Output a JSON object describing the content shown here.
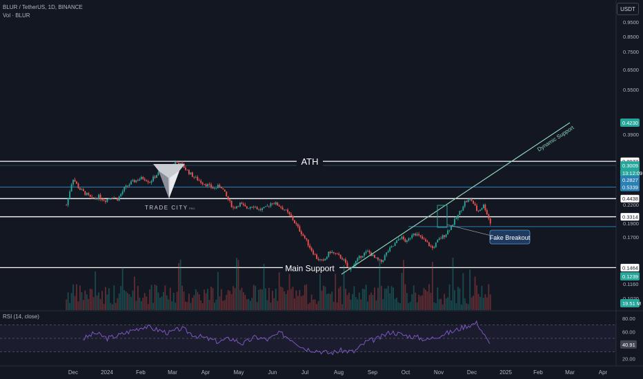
{
  "header": {
    "symbol_line": "BLUR / TetherUS, 1D, BINANCE",
    "vol_line": "Vol · BLUR",
    "currency_button": "USDT"
  },
  "rsi": {
    "label": "RSI (14, close)",
    "value_tag": "40.91",
    "tick_labels": [
      "80.00",
      "60.00",
      "20.00"
    ]
  },
  "logo": {
    "text": "TRADE CITY",
    "suffix": "PRO"
  },
  "annotations": {
    "ath": "ATH",
    "main_support": "Main Support",
    "dynamic_support": "Dynamic Support",
    "fake_breakout": "Fake Breakout"
  },
  "colors": {
    "background": "#131722",
    "up": "#26a69a",
    "down": "#ef5350",
    "level_line": "#ffffff",
    "blue_line": "#2a7fb5",
    "trend_line": "#8fd6b8",
    "rsi_line": "#7e57c2"
  },
  "chart_data": {
    "type": "candlestick",
    "x_tick_labels": [
      "Dec",
      "2024",
      "Feb",
      "Mar",
      "Apr",
      "May",
      "Jun",
      "Jul",
      "Aug",
      "Sep",
      "Oct",
      "Nov",
      "Dec",
      "2025",
      "Feb",
      "Mar",
      "Apr"
    ],
    "y_tick_labels": [
      "0.9500",
      "0.8500",
      "0.7500",
      "0.6500",
      "0.5500",
      "0.3900",
      "0.2500",
      "0.2200",
      "0.1900",
      "0.1700",
      "0.1300",
      "0.1160",
      "0.1020"
    ],
    "price_tags": [
      {
        "label": "0.8077",
        "kind": "level"
      },
      {
        "label": "0.5339",
        "kind": "blue"
      },
      {
        "label": "0.4438",
        "kind": "level"
      },
      {
        "label": "0.4230",
        "kind": "green"
      },
      {
        "label": "0.3314",
        "kind": "level"
      },
      {
        "label": "0.3009",
        "kind": "current"
      },
      {
        "label": "13:12:09",
        "kind": "current"
      },
      {
        "label": "0.2827",
        "kind": "blue"
      },
      {
        "label": "0.1464",
        "kind": "level"
      },
      {
        "label": "0.1239",
        "kind": "green"
      },
      {
        "label": "19.51 M",
        "kind": "green"
      }
    ],
    "levels": {
      "ath": 0.8077,
      "resistance_1": 0.4438,
      "resistance_2": 0.3314,
      "main_support": 0.1464,
      "blue_1": 0.5339,
      "blue_2": 0.2827
    },
    "price_path": [
      [
        0,
        0.4
      ],
      [
        2,
        0.62
      ],
      [
        4,
        0.52
      ],
      [
        6,
        0.48
      ],
      [
        8,
        0.44
      ],
      [
        10,
        0.46
      ],
      [
        12,
        0.43
      ],
      [
        14,
        0.46
      ],
      [
        16,
        0.44
      ],
      [
        18,
        0.52
      ],
      [
        20,
        0.57
      ],
      [
        22,
        0.6
      ],
      [
        24,
        0.62
      ],
      [
        26,
        0.58
      ],
      [
        28,
        0.65
      ],
      [
        30,
        0.7
      ],
      [
        32,
        0.74
      ],
      [
        34,
        0.8
      ],
      [
        36,
        0.76
      ],
      [
        38,
        0.68
      ],
      [
        40,
        0.62
      ],
      [
        42,
        0.58
      ],
      [
        44,
        0.55
      ],
      [
        46,
        0.52
      ],
      [
        48,
        0.55
      ],
      [
        50,
        0.45
      ],
      [
        52,
        0.38
      ],
      [
        54,
        0.41
      ],
      [
        56,
        0.38
      ],
      [
        58,
        0.4
      ],
      [
        60,
        0.37
      ],
      [
        62,
        0.38
      ],
      [
        64,
        0.42
      ],
      [
        66,
        0.4
      ],
      [
        68,
        0.37
      ],
      [
        70,
        0.33
      ],
      [
        72,
        0.28
      ],
      [
        74,
        0.24
      ],
      [
        76,
        0.2
      ],
      [
        78,
        0.17
      ],
      [
        80,
        0.16
      ],
      [
        82,
        0.19
      ],
      [
        84,
        0.18
      ],
      [
        86,
        0.17
      ],
      [
        88,
        0.14
      ],
      [
        90,
        0.16
      ],
      [
        92,
        0.18
      ],
      [
        94,
        0.19
      ],
      [
        96,
        0.17
      ],
      [
        98,
        0.16
      ],
      [
        100,
        0.19
      ],
      [
        102,
        0.21
      ],
      [
        104,
        0.24
      ],
      [
        106,
        0.22
      ],
      [
        108,
        0.26
      ],
      [
        110,
        0.24
      ],
      [
        112,
        0.22
      ],
      [
        114,
        0.2
      ],
      [
        116,
        0.23
      ],
      [
        118,
        0.25
      ],
      [
        120,
        0.29
      ],
      [
        122,
        0.34
      ],
      [
        124,
        0.42
      ],
      [
        126,
        0.44
      ],
      [
        128,
        0.36
      ],
      [
        130,
        0.4
      ],
      [
        132,
        0.3
      ]
    ],
    "rsi_path": [
      [
        0,
        49
      ],
      [
        4,
        58
      ],
      [
        8,
        50
      ],
      [
        12,
        55
      ],
      [
        16,
        62
      ],
      [
        20,
        68
      ],
      [
        24,
        63
      ],
      [
        28,
        58
      ],
      [
        32,
        65
      ],
      [
        36,
        55
      ],
      [
        40,
        50
      ],
      [
        44,
        45
      ],
      [
        48,
        50
      ],
      [
        52,
        42
      ],
      [
        56,
        52
      ],
      [
        60,
        48
      ],
      [
        64,
        58
      ],
      [
        68,
        48
      ],
      [
        72,
        35
      ],
      [
        76,
        32
      ],
      [
        80,
        28
      ],
      [
        84,
        32
      ],
      [
        88,
        30
      ],
      [
        92,
        45
      ],
      [
        96,
        50
      ],
      [
        100,
        60
      ],
      [
        104,
        55
      ],
      [
        108,
        52
      ],
      [
        112,
        48
      ],
      [
        116,
        55
      ],
      [
        120,
        60
      ],
      [
        124,
        68
      ],
      [
        128,
        73
      ],
      [
        132,
        41
      ]
    ],
    "rsi_levels": [
      70,
      50,
      30
    ],
    "ylim": [
      0.1,
      0.95
    ],
    "grid": false,
    "legend": "none"
  }
}
